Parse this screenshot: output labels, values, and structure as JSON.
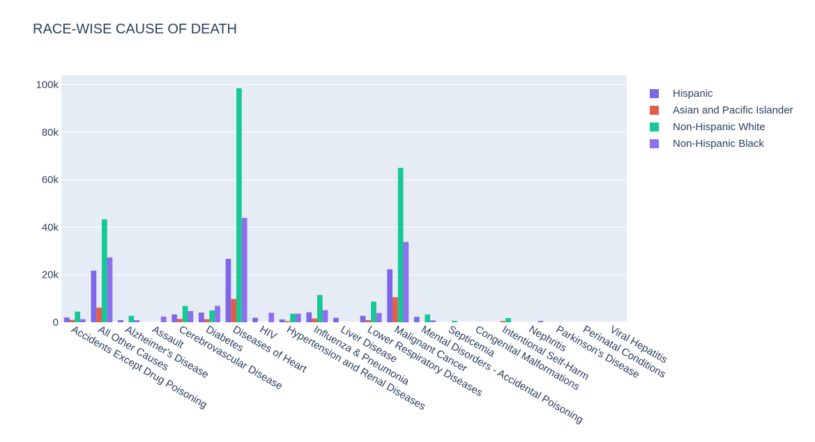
{
  "chart_data": {
    "type": "bar",
    "title": "RACE-WISE CAUSE OF DEATH",
    "xlabel": "",
    "ylabel": "",
    "ylim": [
      0,
      104000
    ],
    "yticks": [
      0,
      20000,
      40000,
      60000,
      80000,
      100000
    ],
    "ytick_labels": [
      "0",
      "20k",
      "40k",
      "60k",
      "80k",
      "100k"
    ],
    "grid": true,
    "legend_position": "top-right",
    "categories": [
      "Accidents Except Drug Poisoning",
      "All Other Causes",
      "Alzheimer's Disease",
      "Assault",
      "Cerebrovascular Disease",
      "Diabetes",
      "Diseases of Heart",
      "HIV",
      "Hypertension and Renal Diseases",
      "Influenza & Pneumonia",
      "Liver Disease",
      "Lower Respiratory Diseases",
      "Malignant Cancer",
      "Mental Disorders - Accidental Poisoning",
      "Septicemia",
      "Congenital Malformations",
      "Intentional Self-Harm",
      "Nephritis",
      "Parkinson's Disease",
      "Perinatal Conditions",
      "Viral Hepatitis"
    ],
    "series": [
      {
        "name": "Hispanic",
        "color": "#7d66e8",
        "values": [
          2000,
          21700,
          900,
          0,
          3300,
          4100,
          26700,
          1900,
          1200,
          4200,
          1900,
          2700,
          22300,
          2300,
          0,
          0,
          0,
          0,
          0,
          0,
          0
        ]
      },
      {
        "name": "Asian and Pacific Islander",
        "color": "#e45e4a",
        "values": [
          1000,
          6200,
          0,
          0,
          1400,
          1300,
          9800,
          0,
          500,
          1600,
          0,
          900,
          10500,
          0,
          0,
          0,
          500,
          0,
          0,
          0,
          0
        ]
      },
      {
        "name": "Non-Hispanic White",
        "color": "#17c794",
        "values": [
          4500,
          43300,
          2700,
          0,
          6900,
          5000,
          98500,
          0,
          3600,
          11500,
          0,
          8700,
          65000,
          3300,
          600,
          0,
          1800,
          0,
          0,
          0,
          0
        ]
      },
      {
        "name": "Non-Hispanic Black",
        "color": "#8e6ff0",
        "values": [
          1300,
          27300,
          900,
          2400,
          4700,
          6900,
          43900,
          4000,
          3600,
          5100,
          0,
          3900,
          33800,
          800,
          0,
          0,
          0,
          600,
          0,
          0,
          0
        ]
      }
    ]
  }
}
